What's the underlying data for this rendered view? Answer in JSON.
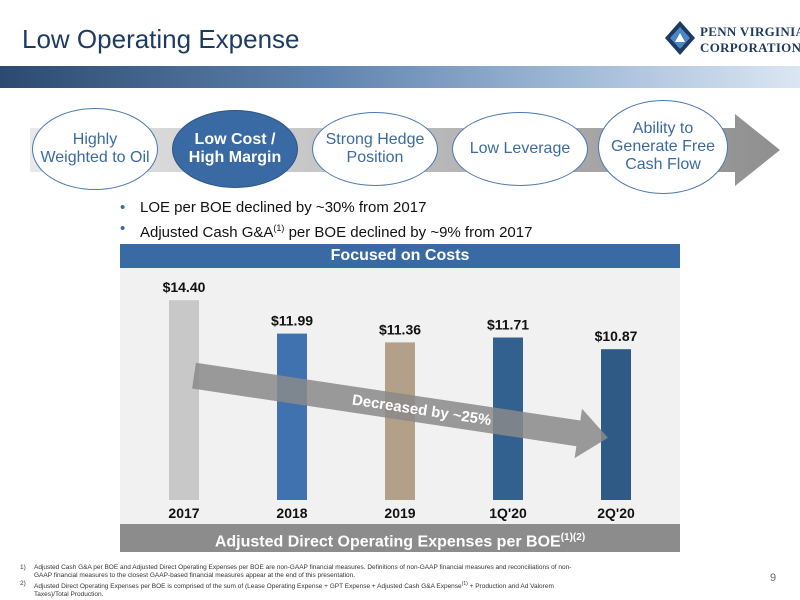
{
  "header": {
    "title": "Low Operating Expense",
    "logo_line1": "PENN VIRGINIA",
    "logo_line2": "CORPORATION"
  },
  "themes": [
    {
      "label": "Highly Weighted to Oil",
      "active": false
    },
    {
      "label": "Low Cost / High Margin",
      "active": true
    },
    {
      "label": "Strong Hedge Position",
      "active": false
    },
    {
      "label": "Low Leverage",
      "active": false
    },
    {
      "label": "Ability to Generate Free Cash Flow",
      "active": false
    }
  ],
  "bullets": [
    {
      "pre": "LOE per BOE declined by ~30% from 2017",
      "sup": "",
      "post": ""
    },
    {
      "pre": "Adjusted Cash G&A",
      "sup": "(1)",
      "post": " per BOE declined by ~9% from 2017"
    }
  ],
  "chart_data": {
    "type": "bar",
    "title": "Focused on Costs",
    "xlabel": "Adjusted Direct Operating Expenses per BOE",
    "xlabel_sup": "(1)(2)",
    "categories": [
      "2017",
      "2018",
      "2019",
      "1Q'20",
      "2Q'20"
    ],
    "values": [
      14.4,
      11.99,
      11.36,
      11.71,
      10.87
    ],
    "data_labels": [
      "$14.40",
      "$11.99",
      "$11.36",
      "$11.71",
      "$10.87"
    ],
    "colors": [
      "#c8c8c8",
      "#3f72ae",
      "#b3a089",
      "#33618f",
      "#2e5a85"
    ],
    "ylim": [
      0,
      16
    ],
    "annotation": "Decreased by ~25%",
    "grid": false,
    "legend": "none"
  },
  "footnotes": [
    {
      "num": "1)",
      "text": "Adjusted Cash G&A per BOE and Adjusted Direct Operating Expenses per BOE are non-GAAP financial measures. Definitions of non-GAAP financial measures and reconciliations of non-GAAP financial measures to the closest GAAP-based financial measures appear at the end of this presentation.",
      "sup": "",
      "tail": ""
    },
    {
      "num": "2)",
      "text": "Adjusted Direct Operating Expenses per BOE is comprised of the sum of (Lease Operating Expense + GPT Expense + Adjusted Cash G&A Expense",
      "sup": "(1)",
      "tail": " + Production and Ad Valorem Taxes)/Total Production."
    }
  ],
  "page_number": "9"
}
